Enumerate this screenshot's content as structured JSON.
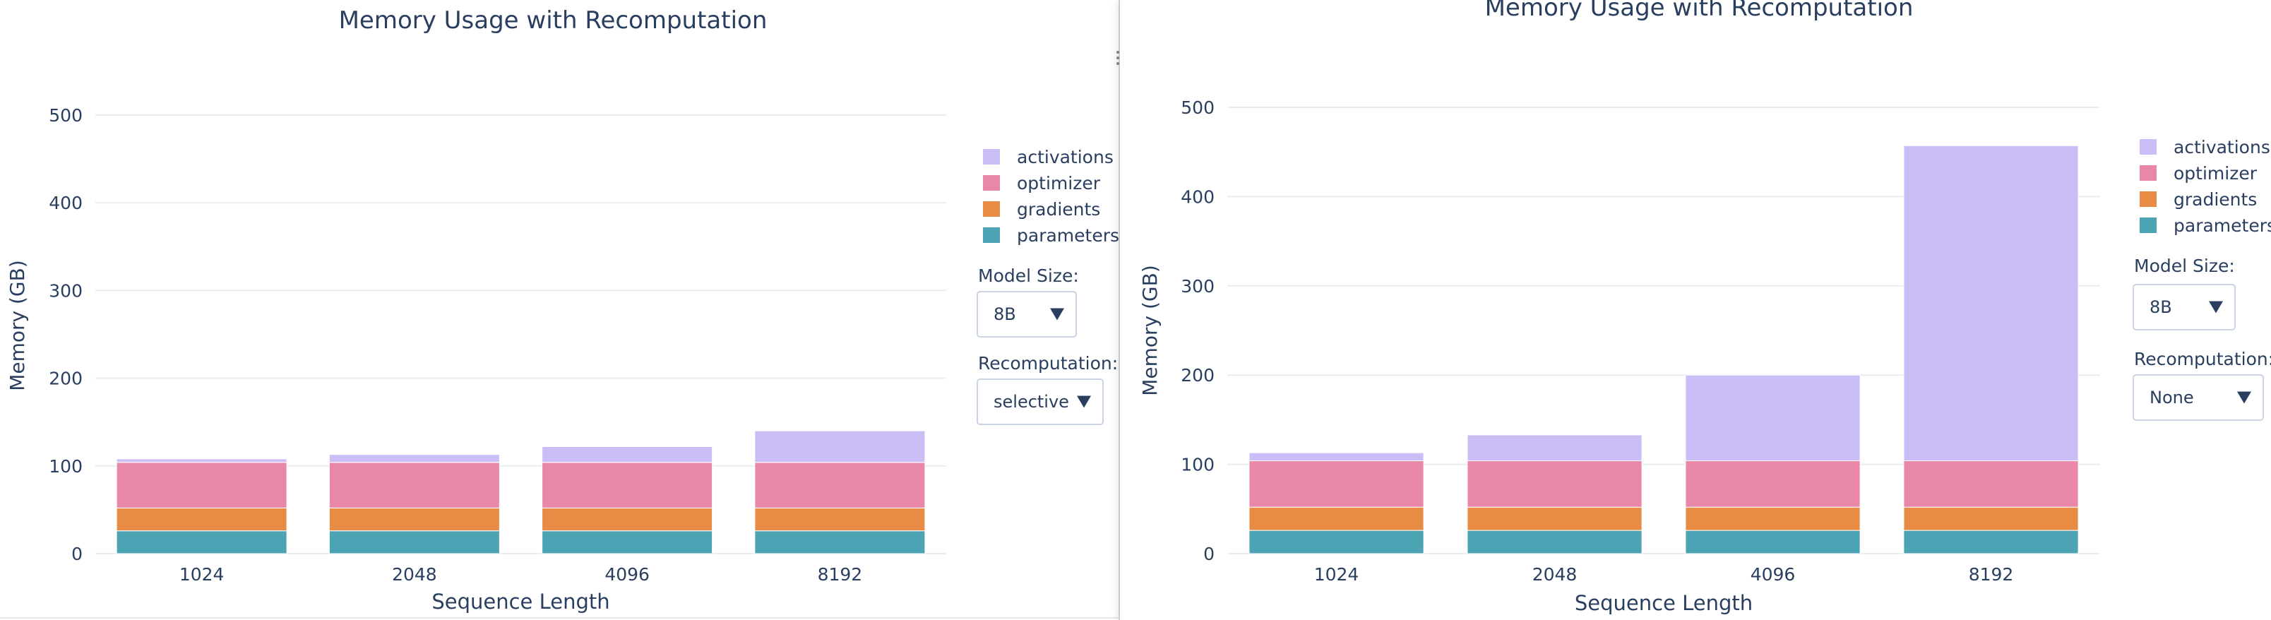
{
  "chart_data": [
    {
      "type": "bar",
      "stacked": true,
      "title": "Memory Usage with Recomputation",
      "xlabel": "Sequence Length",
      "ylabel": "Memory (GB)",
      "categories": [
        "1024",
        "2048",
        "4096",
        "8192"
      ],
      "ylim": [
        0,
        520
      ],
      "yticks": [
        0,
        100,
        200,
        300,
        400,
        500
      ],
      "grid": true,
      "legend_position": "right",
      "series": [
        {
          "name": "parameters",
          "color": "#4ba3b4",
          "values": [
            26,
            26,
            26,
            26
          ]
        },
        {
          "name": "gradients",
          "color": "#e88b45",
          "values": [
            26,
            26,
            26,
            26
          ]
        },
        {
          "name": "optimizer",
          "color": "#e987a8",
          "values": [
            52,
            52,
            52,
            52
          ]
        },
        {
          "name": "activations",
          "color": "#cbbef6",
          "values": [
            4,
            9,
            18,
            36
          ]
        }
      ],
      "controls": {
        "model_size_label": "Model Size:",
        "model_size_value": "8B",
        "recomputation_label": "Recomputation:",
        "recomputation_value": "selective"
      }
    },
    {
      "type": "bar",
      "stacked": true,
      "title": "Memory Usage with Recomputation",
      "xlabel": "Sequence Length",
      "ylabel": "Memory (GB)",
      "categories": [
        "1024",
        "2048",
        "4096",
        "8192"
      ],
      "ylim": [
        0,
        500
      ],
      "yticks": [
        0,
        100,
        200,
        300,
        400,
        500
      ],
      "grid": true,
      "legend_position": "right",
      "series": [
        {
          "name": "parameters",
          "color": "#4ba3b4",
          "values": [
            26,
            26,
            26,
            26
          ]
        },
        {
          "name": "gradients",
          "color": "#e88b45",
          "values": [
            26,
            26,
            26,
            26
          ]
        },
        {
          "name": "optimizer",
          "color": "#e987a8",
          "values": [
            52,
            52,
            52,
            52
          ]
        },
        {
          "name": "activations",
          "color": "#cbbef6",
          "values": [
            9,
            29,
            96,
            353
          ]
        }
      ],
      "controls": {
        "model_size_label": "Model Size:",
        "model_size_value": "8B",
        "recomputation_label": "Recomputation:",
        "recomputation_value": "None"
      }
    }
  ]
}
